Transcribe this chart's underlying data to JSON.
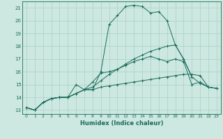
{
  "xlabel": "Humidex (Indice chaleur)",
  "background_color": "#cce8e0",
  "grid_color": "#aacfc8",
  "line_color": "#1a6b5a",
  "xlim": [
    -0.5,
    23.5
  ],
  "ylim": [
    12.7,
    21.5
  ],
  "yticks": [
    13,
    14,
    15,
    16,
    17,
    18,
    19,
    20,
    21
  ],
  "xticks": [
    0,
    1,
    2,
    3,
    4,
    5,
    6,
    7,
    8,
    9,
    10,
    11,
    12,
    13,
    14,
    15,
    16,
    17,
    18,
    19,
    20,
    21,
    22,
    23
  ],
  "series": [
    [
      13.2,
      13.0,
      13.6,
      13.9,
      14.0,
      14.0,
      15.0,
      14.6,
      15.2,
      15.9,
      16.0,
      16.2,
      16.5,
      16.8,
      17.0,
      17.2,
      17.0,
      16.8,
      17.0,
      16.8,
      15.0,
      15.2,
      14.8,
      14.7
    ],
    [
      13.2,
      13.0,
      13.6,
      13.9,
      14.0,
      14.0,
      14.3,
      14.6,
      14.6,
      16.0,
      19.7,
      20.4,
      21.1,
      21.2,
      21.1,
      20.6,
      20.7,
      20.0,
      18.1,
      17.0,
      15.6,
      15.1,
      14.8,
      14.7
    ],
    [
      13.2,
      13.0,
      13.6,
      13.9,
      14.0,
      14.0,
      14.3,
      14.6,
      14.8,
      15.3,
      15.8,
      16.2,
      16.6,
      17.0,
      17.3,
      17.6,
      17.8,
      18.0,
      18.1,
      17.0,
      15.6,
      null,
      null,
      null
    ],
    [
      13.2,
      13.0,
      13.6,
      13.9,
      14.0,
      14.0,
      14.3,
      14.6,
      14.6,
      14.8,
      14.9,
      15.0,
      15.1,
      15.2,
      15.3,
      15.4,
      15.5,
      15.6,
      15.7,
      15.8,
      15.8,
      15.7,
      14.8,
      14.7
    ]
  ]
}
